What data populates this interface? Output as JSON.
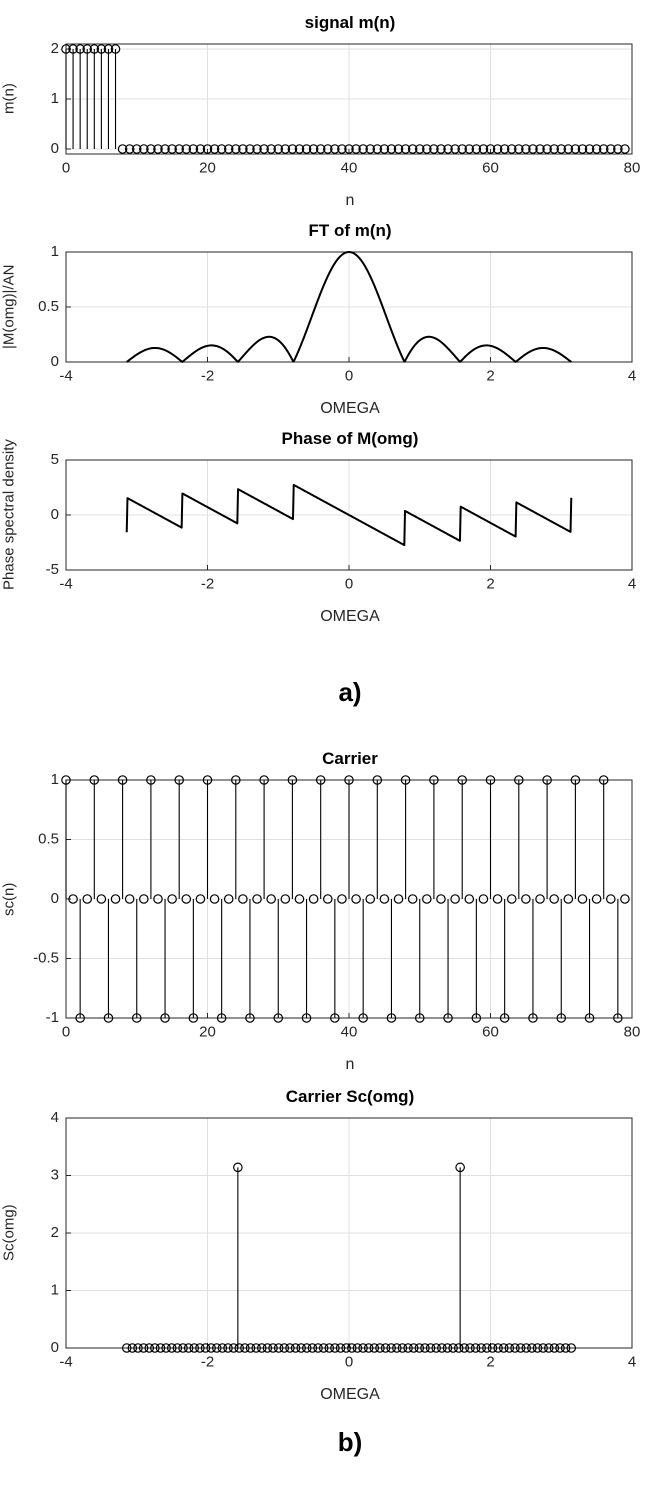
{
  "page": {
    "background": "#ffffff"
  },
  "colors": {
    "line": "#000000",
    "grid": "#e0e0e0",
    "axis": "#262626",
    "tick_label": "#262626"
  },
  "section_labels": {
    "a": "a)",
    "b": "b)"
  },
  "chart_data": [
    {
      "id": "signal-mn",
      "type": "stem",
      "title": "signal m(n)",
      "xlabel": "n",
      "ylabel": "m(n)",
      "xlim": [
        0,
        80
      ],
      "ylim": [
        -0.1,
        2.1
      ],
      "xticks": [
        0,
        20,
        40,
        60,
        80
      ],
      "yticks": [
        0,
        1,
        2
      ],
      "grid": true,
      "series": {
        "kind": "pulse_stem",
        "amplitude": 2,
        "on_count": 8,
        "n_start": 0,
        "n_end": 79
      },
      "description": "rectangular pulse: m(n)=2 for n=0..7, m(n)=0 for n=8..79"
    },
    {
      "id": "ft-magnitude",
      "type": "line",
      "title": "FT of m(n)",
      "xlabel": "OMEGA",
      "ylabel": "|M(omg)|/AN",
      "xlim": [
        -4,
        4
      ],
      "ylim": [
        0,
        1
      ],
      "xticks": [
        -4,
        -2,
        0,
        2,
        4
      ],
      "yticks": [
        0,
        0.5,
        1
      ],
      "grid": true,
      "series": {
        "kind": "dtft_pulse_magnitude",
        "amplitude": 2,
        "N": 8,
        "normalized_by": "A*N",
        "omega_min": -3.1416,
        "omega_max": 3.1416,
        "samples": 600
      },
      "key_points": {
        "peak": {
          "x": 0,
          "y": 1
        },
        "first_nulls": [
          -0.7854,
          0.7854
        ],
        "sidelobe_peaks_y": [
          0.22,
          0.13,
          0.11
        ]
      }
    },
    {
      "id": "ft-phase",
      "type": "line",
      "title": "Phase of M(omg)",
      "xlabel": "OMEGA",
      "ylabel": "Phase spectral density",
      "xlim": [
        -4,
        4
      ],
      "ylim": [
        -5,
        5
      ],
      "xticks": [
        -4,
        -2,
        0,
        2,
        4
      ],
      "yticks": [
        -5,
        0,
        5
      ],
      "grid": true,
      "series": {
        "kind": "dtft_pulse_phase",
        "amplitude": 2,
        "N": 8,
        "omega_min": -3.1416,
        "omega_max": 3.1416,
        "samples": 600
      },
      "key_points": {
        "sawtooth_slope": -3.5,
        "main_ramp": {
          "from": [
            -0.7854,
            2.75
          ],
          "to": [
            0.7854,
            -2.75
          ]
        },
        "range": [
          -3.1416,
          3.1416
        ]
      }
    },
    {
      "id": "carrier",
      "type": "stem",
      "title": "Carrier",
      "xlabel": "n",
      "ylabel": "sc(n)",
      "xlim": [
        0,
        80
      ],
      "ylim": [
        -1,
        1
      ],
      "xticks": [
        0,
        20,
        40,
        60,
        80
      ],
      "yticks": [
        -1,
        -0.5,
        0,
        0.5,
        1
      ],
      "grid": true,
      "series": {
        "kind": "cos_stem",
        "amplitude": 1,
        "period": 4,
        "n_start": 0,
        "n_end": 79
      },
      "description": "sc(n)=cos(pi*n/2): +1 at n=0,4,8..., 0 at odd n, -1 at n=2,6,10..."
    },
    {
      "id": "carrier-spectrum",
      "type": "stem",
      "title": "Carrier Sc(omg)",
      "xlabel": "OMEGA",
      "ylabel": "Sc(omg)",
      "xlim": [
        -4,
        4
      ],
      "ylim": [
        0,
        4
      ],
      "xticks": [
        -4,
        -2,
        0,
        2,
        4
      ],
      "yticks": [
        0,
        1,
        2,
        3,
        4
      ],
      "grid": true,
      "series": {
        "kind": "impulse_stem",
        "omega_min": -3.1416,
        "omega_max": 3.1416,
        "samples": 80,
        "baseline": 0,
        "impulses": [
          {
            "x": -1.5708,
            "y": 3.1416
          },
          {
            "x": 1.5708,
            "y": 3.1416
          }
        ]
      },
      "description": "spectral lines of height pi at omega = -pi/2 and +pi/2, zero elsewhere"
    }
  ]
}
